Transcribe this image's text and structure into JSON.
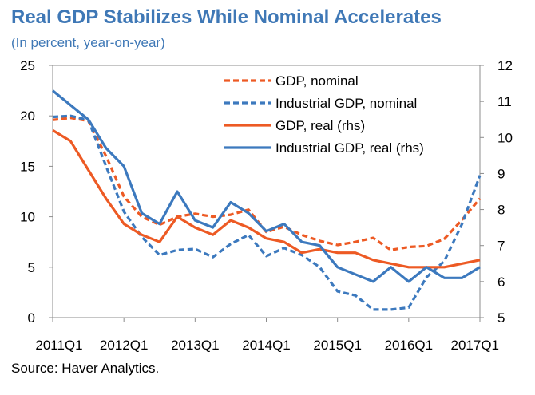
{
  "title": "Real GDP Stabilizes While Nominal Accelerates",
  "subtitle": "(In percent, year-on-year)",
  "source": "Source: Haver Analytics.",
  "chart_data": {
    "type": "line",
    "x": [
      "2011Q1",
      "2011Q2",
      "2011Q3",
      "2011Q4",
      "2012Q1",
      "2012Q2",
      "2012Q3",
      "2012Q4",
      "2013Q1",
      "2013Q2",
      "2013Q3",
      "2013Q4",
      "2014Q1",
      "2014Q2",
      "2014Q3",
      "2014Q4",
      "2015Q1",
      "2015Q2",
      "2015Q3",
      "2015Q4",
      "2016Q1",
      "2016Q2",
      "2016Q3",
      "2016Q4",
      "2017Q1"
    ],
    "x_tick_labels": [
      "2011Q1",
      "2012Q1",
      "2013Q1",
      "2014Q1",
      "2015Q1",
      "2016Q1",
      "2017Q1"
    ],
    "y_left": {
      "min": 0,
      "max": 25,
      "ticks": [
        "0",
        "5",
        "10",
        "15",
        "20",
        "25"
      ]
    },
    "y_right": {
      "min": 5,
      "max": 12,
      "ticks": [
        "5",
        "6",
        "7",
        "8",
        "9",
        "10",
        "11",
        "12"
      ]
    },
    "grid": false,
    "legend_position": "top-right",
    "series": [
      {
        "name": "GDP, nominal",
        "axis": "left",
        "style": "dashed",
        "color": "#ed5a24",
        "values": [
          19.6,
          19.8,
          19.5,
          16.0,
          12.0,
          10.0,
          9.2,
          10.0,
          10.3,
          10.0,
          10.2,
          10.7,
          8.5,
          9.0,
          8.2,
          7.6,
          7.2,
          7.5,
          7.9,
          6.7,
          7.0,
          7.1,
          7.8,
          9.7,
          11.8
        ]
      },
      {
        "name": "Industrial GDP, nominal",
        "axis": "left",
        "style": "dashed",
        "color": "#3c79be",
        "values": [
          19.9,
          20.0,
          19.6,
          15.0,
          10.5,
          8.0,
          6.2,
          6.7,
          6.8,
          6.0,
          7.3,
          8.2,
          6.1,
          6.9,
          6.2,
          5.0,
          2.6,
          2.2,
          0.8,
          0.8,
          1.0,
          4.0,
          5.6,
          9.3,
          14.1
        ]
      },
      {
        "name": "GDP, real (rhs)",
        "axis": "right",
        "style": "solid",
        "color": "#ed5a24",
        "values": [
          10.2,
          9.9,
          9.1,
          8.3,
          7.6,
          7.3,
          7.1,
          7.8,
          7.5,
          7.3,
          7.7,
          7.5,
          7.2,
          7.1,
          6.8,
          6.9,
          6.8,
          6.8,
          6.6,
          6.5,
          6.4,
          6.4,
          6.4,
          6.5,
          6.6
        ]
      },
      {
        "name": "Industrial GDP, real (rhs)",
        "axis": "right",
        "style": "solid",
        "color": "#3c79be",
        "values": [
          11.3,
          10.9,
          10.5,
          9.7,
          9.2,
          7.9,
          7.6,
          8.5,
          7.7,
          7.5,
          8.2,
          7.9,
          7.4,
          7.6,
          7.1,
          7.0,
          6.4,
          6.2,
          6.0,
          6.4,
          6.0,
          6.4,
          6.1,
          6.1,
          6.4
        ]
      }
    ]
  }
}
